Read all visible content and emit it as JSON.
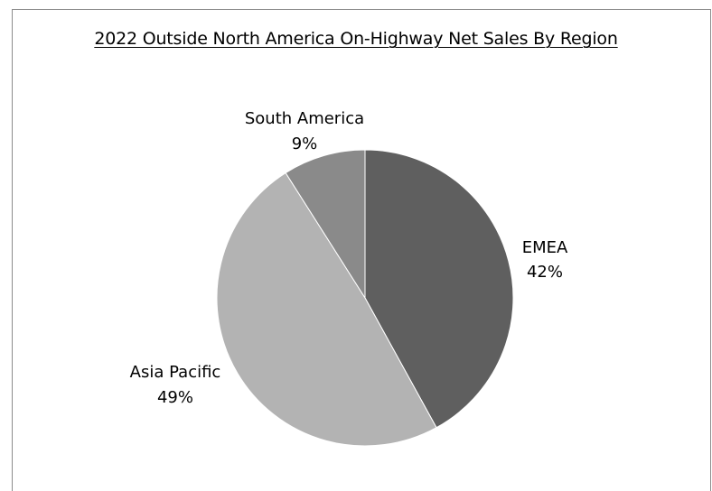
{
  "chart_data": {
    "type": "pie",
    "title": "2022 Outside North America On-Highway Net Sales By Region",
    "slices": [
      {
        "name": "EMEA",
        "value": 42,
        "label": "42%",
        "color": "#5f5f5f"
      },
      {
        "name": "Asia Pacific",
        "value": 49,
        "label": "49%",
        "color": "#b3b3b3"
      },
      {
        "name": "South America",
        "value": 9,
        "label": "9%",
        "color": "#8a8a8a"
      }
    ],
    "start_angle_deg": 0,
    "direction": "clockwise",
    "legend": "none"
  }
}
